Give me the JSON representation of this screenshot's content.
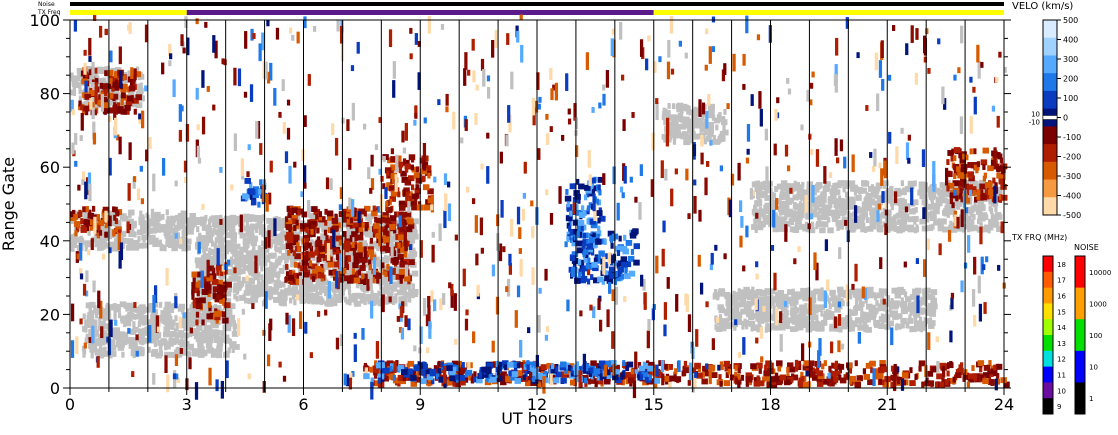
{
  "chart_data": {
    "type": "heatmap",
    "xlabel": "UT hours",
    "ylabel": "Range Gate",
    "xlim": [
      0,
      24
    ],
    "ylim": [
      0,
      100
    ],
    "xticks": [
      0,
      3,
      6,
      9,
      12,
      15,
      18,
      21,
      24
    ],
    "yticks": [
      0,
      20,
      40,
      60,
      80,
      100
    ],
    "noise_label": "Noise",
    "txfreq_label": "TX Freq",
    "noise_bar_color": "#000000",
    "txfreq_segments": [
      {
        "start": 0,
        "end": 3,
        "color": "#ffff00"
      },
      {
        "start": 3,
        "end": 15,
        "color": "#5a1a8c"
      },
      {
        "start": 15,
        "end": 24,
        "color": "#ffff00"
      }
    ],
    "velocity_scale": {
      "title": "VELO (km/s)",
      "ticks": [
        "500",
        "400",
        "300",
        "200",
        "100",
        "0",
        "-100",
        "-200",
        "-300",
        "-400",
        "-500"
      ],
      "center_labels": [
        "10",
        "-10"
      ],
      "colors": [
        "#d8ecff",
        "#9fd2ff",
        "#55aaff",
        "#1e78e8",
        "#0a3cc0",
        "#00147a",
        "#7a0000",
        "#b01e00",
        "#d85a00",
        "#f59a40",
        "#ffd9a8"
      ]
    },
    "txfreq_scale": {
      "title": "TX FRQ (MHz)",
      "ticks": [
        "18",
        "17",
        "16",
        "15",
        "14",
        "13",
        "12",
        "11",
        "10",
        "9"
      ],
      "colors": [
        "#ff0000",
        "#ff5a00",
        "#ff9a00",
        "#ffe000",
        "#a0ff00",
        "#00e000",
        "#00e0e0",
        "#0000ff",
        "#6a0da0",
        "#000000"
      ]
    },
    "noise_scale": {
      "title": "NOISE",
      "ticks": [
        "10000",
        "1000",
        "100",
        "10",
        "1"
      ],
      "colors": [
        "#ff0000",
        "#ffa000",
        "#00e000",
        "#0000ff",
        "#000000"
      ]
    },
    "ground_scatter_color": "#c0c0c0",
    "echo_regions": [
      {
        "kind": "ground",
        "x": [
          0,
          3.1
        ],
        "y": [
          37,
          47
        ]
      },
      {
        "kind": "ground",
        "x": [
          0.3,
          4.2
        ],
        "y": [
          8,
          22
        ]
      },
      {
        "kind": "ground",
        "x": [
          3.2,
          8.8
        ],
        "y": [
          22,
          46
        ]
      },
      {
        "kind": "ground",
        "x": [
          16.5,
          22.2
        ],
        "y": [
          15,
          26
        ]
      },
      {
        "kind": "ground",
        "x": [
          17.5,
          23.8
        ],
        "y": [
          42,
          55
        ]
      },
      {
        "kind": "ground",
        "x": [
          15.2,
          16.8
        ],
        "y": [
          66,
          76
        ]
      },
      {
        "kind": "ground",
        "x": [
          0,
          1.8
        ],
        "y": [
          76,
          86
        ]
      },
      {
        "kind": "neg",
        "x": [
          0,
          1.2
        ],
        "y": [
          40,
          48
        ]
      },
      {
        "kind": "neg",
        "x": [
          0.2,
          1.7
        ],
        "y": [
          74,
          86
        ]
      },
      {
        "kind": "neg",
        "x": [
          3.1,
          4.0
        ],
        "y": [
          17,
          32
        ]
      },
      {
        "kind": "neg",
        "x": [
          5.5,
          8.7
        ],
        "y": [
          28,
          48
        ]
      },
      {
        "kind": "neg",
        "x": [
          8.0,
          9.2
        ],
        "y": [
          48,
          62
        ]
      },
      {
        "kind": "neg",
        "x": [
          7.5,
          24
        ],
        "y": [
          0,
          6
        ]
      },
      {
        "kind": "neg",
        "x": [
          22.5,
          24
        ],
        "y": [
          50,
          64
        ]
      },
      {
        "kind": "pos",
        "x": [
          12.7,
          13.6
        ],
        "y": [
          38,
          56
        ]
      },
      {
        "kind": "pos",
        "x": [
          12.8,
          14.5
        ],
        "y": [
          28,
          42
        ]
      },
      {
        "kind": "pos",
        "x": [
          7.5,
          15.0
        ],
        "y": [
          1,
          6
        ]
      },
      {
        "kind": "pos",
        "x": [
          4.3,
          5.0
        ],
        "y": [
          49,
          56
        ]
      }
    ]
  }
}
